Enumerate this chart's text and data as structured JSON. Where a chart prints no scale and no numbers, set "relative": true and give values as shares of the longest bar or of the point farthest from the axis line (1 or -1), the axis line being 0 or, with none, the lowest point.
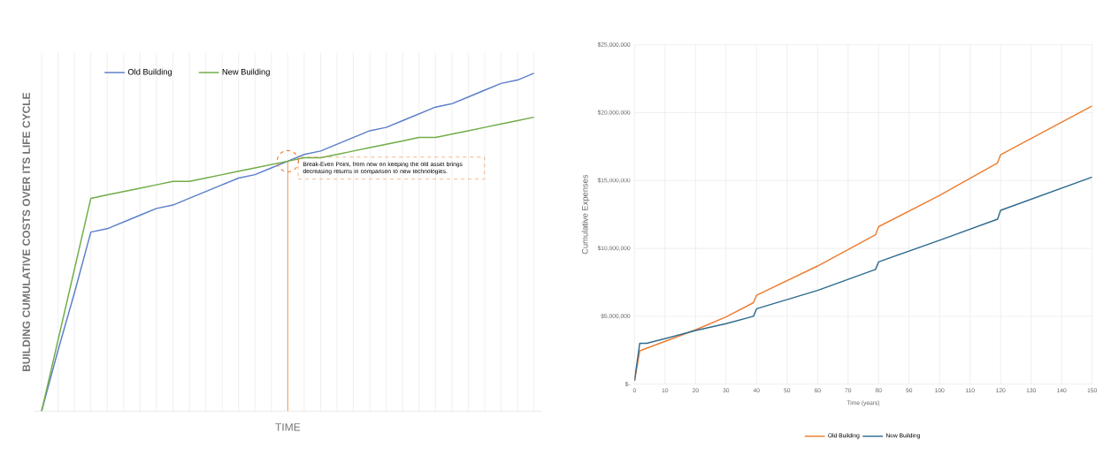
{
  "chart_data": [
    {
      "type": "line",
      "relative": true,
      "xlabel": "TIME",
      "ylabel": "BUILDING CUMULATIVE COSTS OVER ITS LIFE CYCLE",
      "categories": [
        null,
        null,
        null,
        null,
        null,
        null,
        null,
        null,
        null,
        null,
        null,
        null,
        null,
        null,
        null,
        null,
        null,
        null,
        null,
        null,
        null,
        null,
        null,
        null,
        null,
        null,
        null,
        null,
        null,
        null,
        null
      ],
      "series": [
        {
          "name": "Old Building",
          "color": "#5b7fc9",
          "values": [
            0,
            0.18,
            0.35,
            0.53,
            0.54,
            0.56,
            0.58,
            0.6,
            0.61,
            0.63,
            0.65,
            0.67,
            0.69,
            0.7,
            0.72,
            0.74,
            0.76,
            0.77,
            0.79,
            0.81,
            0.83,
            0.84,
            0.86,
            0.88,
            0.9,
            0.91,
            0.93,
            0.95,
            0.97,
            0.98,
            1.0
          ]
        },
        {
          "name": "New Building",
          "color": "#70ad47",
          "values": [
            0,
            0.21,
            0.42,
            0.63,
            0.64,
            0.65,
            0.66,
            0.67,
            0.68,
            0.68,
            0.69,
            0.7,
            0.71,
            0.72,
            0.73,
            0.74,
            0.75,
            0.75,
            0.76,
            0.77,
            0.78,
            0.79,
            0.8,
            0.81,
            0.81,
            0.82,
            0.83,
            0.84,
            0.85,
            0.86,
            0.87
          ]
        }
      ],
      "annotations": [
        "Break-Even Point, from now on keeping the old asset brings decreasing returns in comparison to new technologies."
      ],
      "grid": "x",
      "legend": "top left",
      "marker": "none"
    },
    {
      "type": "line",
      "xlabel": "Time (years)",
      "ylabel": "Cumulative Expenses",
      "series": [
        {
          "name": "Old Building",
          "color": "#ed7d31",
          "x": [
            0,
            1.7,
            10,
            20,
            30,
            39,
            40,
            60,
            79,
            80,
            100,
            119,
            120,
            150
          ],
          "values": [
            250000,
            2450000,
            3150000,
            4000000,
            4950000,
            6000000,
            6550000,
            8700000,
            11000000,
            11600000,
            13900000,
            16300000,
            16900000,
            20500000
          ]
        },
        {
          "name": "New Building",
          "color": "#2e6b8e",
          "x": [
            0,
            1.7,
            4,
            20,
            30,
            39,
            40,
            60,
            79,
            80,
            100,
            119,
            120,
            150
          ],
          "values": [
            250000,
            3000000,
            3000000,
            3950000,
            4450000,
            5000000,
            5550000,
            6900000,
            8450000,
            9000000,
            10600000,
            12150000,
            12800000,
            15250000
          ]
        }
      ],
      "xlim": [
        0,
        150
      ],
      "xticks": [
        0,
        10,
        20,
        30,
        40,
        50,
        60,
        70,
        80,
        90,
        100,
        110,
        120,
        130,
        140,
        150
      ],
      "ylim": [
        0,
        25000000
      ],
      "yticks": [
        {
          "value": 0,
          "label": "$-"
        },
        {
          "value": 5000000,
          "label": "$5,000,000"
        },
        {
          "value": 10000000,
          "label": "$10,000,000"
        },
        {
          "value": 15000000,
          "label": "$15,000,000"
        },
        {
          "value": 20000000,
          "label": "$20,000,000"
        },
        {
          "value": 25000000,
          "label": "$25,000,000"
        }
      ],
      "grid": true,
      "legend": "bottom",
      "marker": "none"
    }
  ]
}
